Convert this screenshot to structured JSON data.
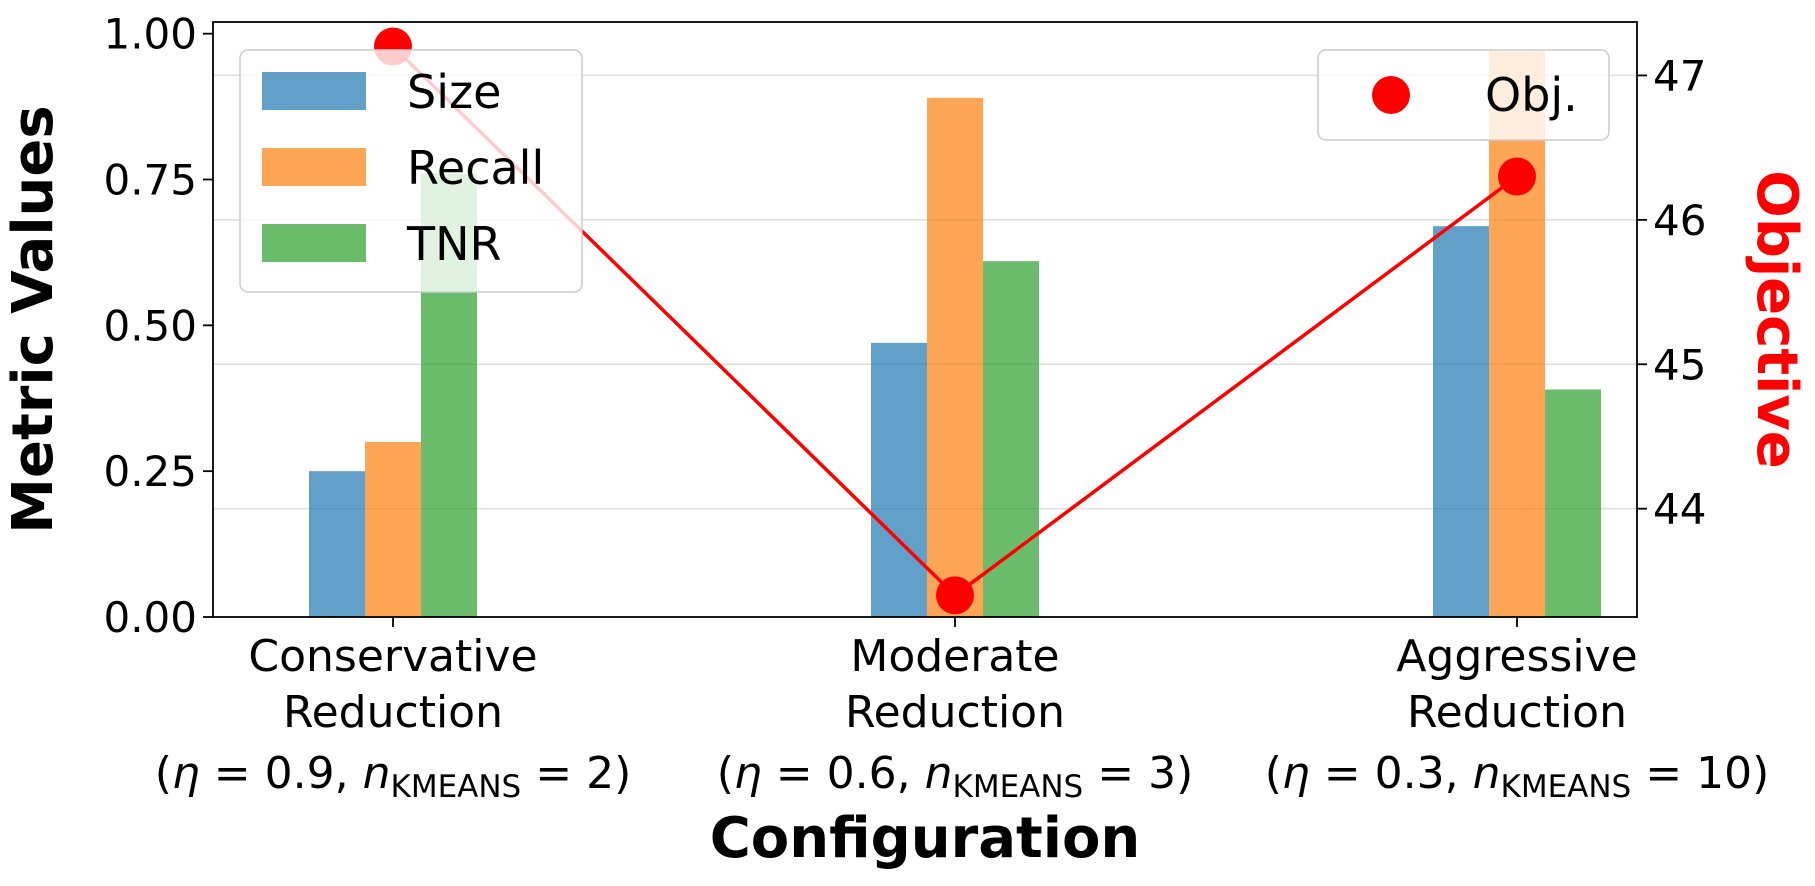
{
  "chart_data": {
    "type": "bar",
    "categories": [
      {
        "line1": "Conservative",
        "line2": "Reduction",
        "params": {
          "eta": "0.9",
          "k": "2"
        }
      },
      {
        "line1": "Moderate",
        "line2": "Reduction",
        "params": {
          "eta": "0.6",
          "k": "3"
        }
      },
      {
        "line1": "Aggressive",
        "line2": "Reduction",
        "params": {
          "eta": "0.3",
          "k": "10"
        }
      }
    ],
    "series": [
      {
        "name": "Size",
        "color": "#1f77b4",
        "values": [
          0.25,
          0.47,
          0.67
        ]
      },
      {
        "name": "Recall",
        "color": "#ff7f0e",
        "values": [
          0.3,
          0.89,
          0.97
        ]
      },
      {
        "name": "TNR",
        "color": "#2ca02c",
        "values": [
          0.76,
          0.61,
          0.39
        ]
      }
    ],
    "objective": {
      "name": "Obj.",
      "color": "#ff0000",
      "values": [
        47.2,
        43.4,
        46.3
      ]
    },
    "xlabel": "Configuration",
    "ylabel": "Metric Values",
    "y2label": "Objective",
    "param_symbols": {
      "eta": "η",
      "n": "n",
      "sub": "KMEANS"
    },
    "ylim": [
      0,
      1.02
    ],
    "y2lim": [
      43.25,
      47.37
    ],
    "yticks": [
      "0.00",
      "0.25",
      "0.50",
      "0.75",
      "1.00"
    ],
    "y2ticks": [
      "44",
      "45",
      "46",
      "47"
    ],
    "grid": true,
    "legend_left_placement": "upper-left",
    "legend_right_placement": "upper-right"
  }
}
